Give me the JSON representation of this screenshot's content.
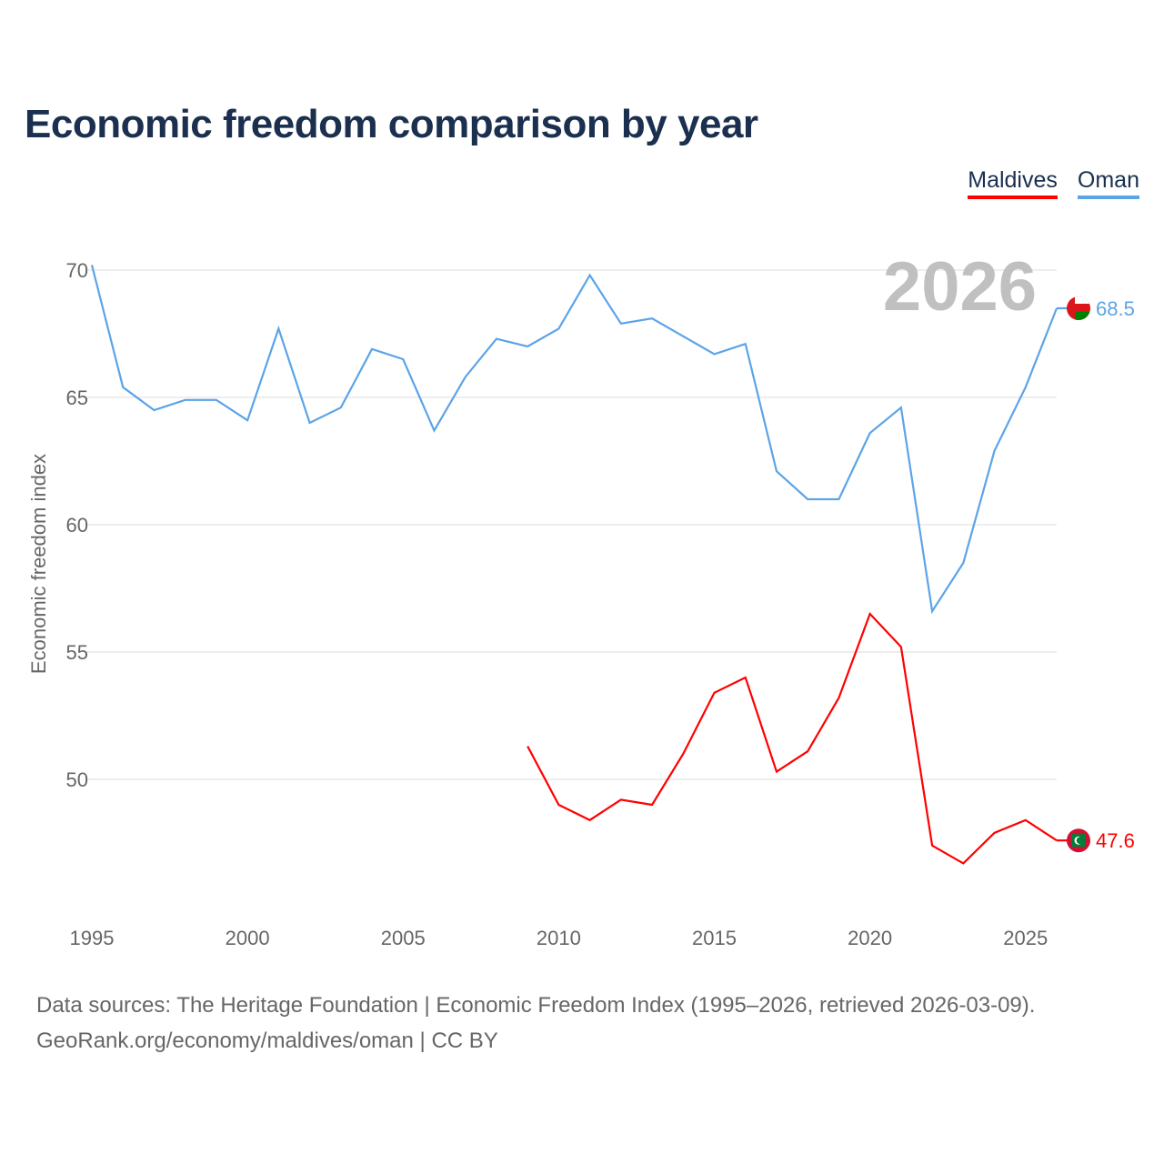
{
  "chart_data": {
    "type": "line",
    "title": "Economic freedom comparison by year",
    "xlabel": "",
    "ylabel": "Economic freedom index",
    "xlim": [
      1995,
      2026
    ],
    "ylim": [
      45,
      71
    ],
    "x_ticks": [
      "1995",
      "2000",
      "2005",
      "2010",
      "2015",
      "2020",
      "2025"
    ],
    "y_ticks": [
      "50",
      "55",
      "60",
      "65",
      "70"
    ],
    "grid": true,
    "legend_position": "top-right",
    "year_watermark": "2026",
    "series": [
      {
        "name": "Maldives",
        "color": "#ff0000",
        "end_label": "47.6",
        "x": [
          2009,
          2010,
          2011,
          2012,
          2013,
          2014,
          2015,
          2016,
          2017,
          2018,
          2019,
          2020,
          2021,
          2022,
          2023,
          2024,
          2025,
          2026
        ],
        "values": [
          51.3,
          49.0,
          48.4,
          49.2,
          49.0,
          51.0,
          53.4,
          54.0,
          50.3,
          51.1,
          53.2,
          56.5,
          55.2,
          47.4,
          46.7,
          47.9,
          48.4,
          47.6
        ]
      },
      {
        "name": "Oman",
        "color": "#5ba4e8",
        "end_label": "68.5",
        "x": [
          1995,
          1996,
          1997,
          1998,
          1999,
          2000,
          2001,
          2002,
          2003,
          2004,
          2005,
          2006,
          2007,
          2008,
          2009,
          2010,
          2011,
          2012,
          2013,
          2014,
          2015,
          2016,
          2017,
          2018,
          2019,
          2020,
          2021,
          2022,
          2023,
          2024,
          2025,
          2026
        ],
        "values": [
          70.2,
          65.4,
          64.5,
          64.9,
          64.9,
          64.1,
          67.7,
          64.0,
          64.6,
          66.9,
          66.5,
          63.7,
          65.8,
          67.3,
          67.0,
          67.7,
          69.8,
          67.9,
          68.1,
          67.4,
          66.7,
          67.1,
          62.1,
          61.0,
          61.0,
          63.6,
          64.6,
          56.6,
          58.5,
          62.9,
          65.4,
          68.5
        ]
      }
    ]
  },
  "footer": {
    "line1": "Data sources: The Heritage Foundation | Economic Freedom Index (1995–2026, retrieved 2026-03-09).",
    "line2": "GeoRank.org/economy/maldives/oman | CC BY"
  }
}
